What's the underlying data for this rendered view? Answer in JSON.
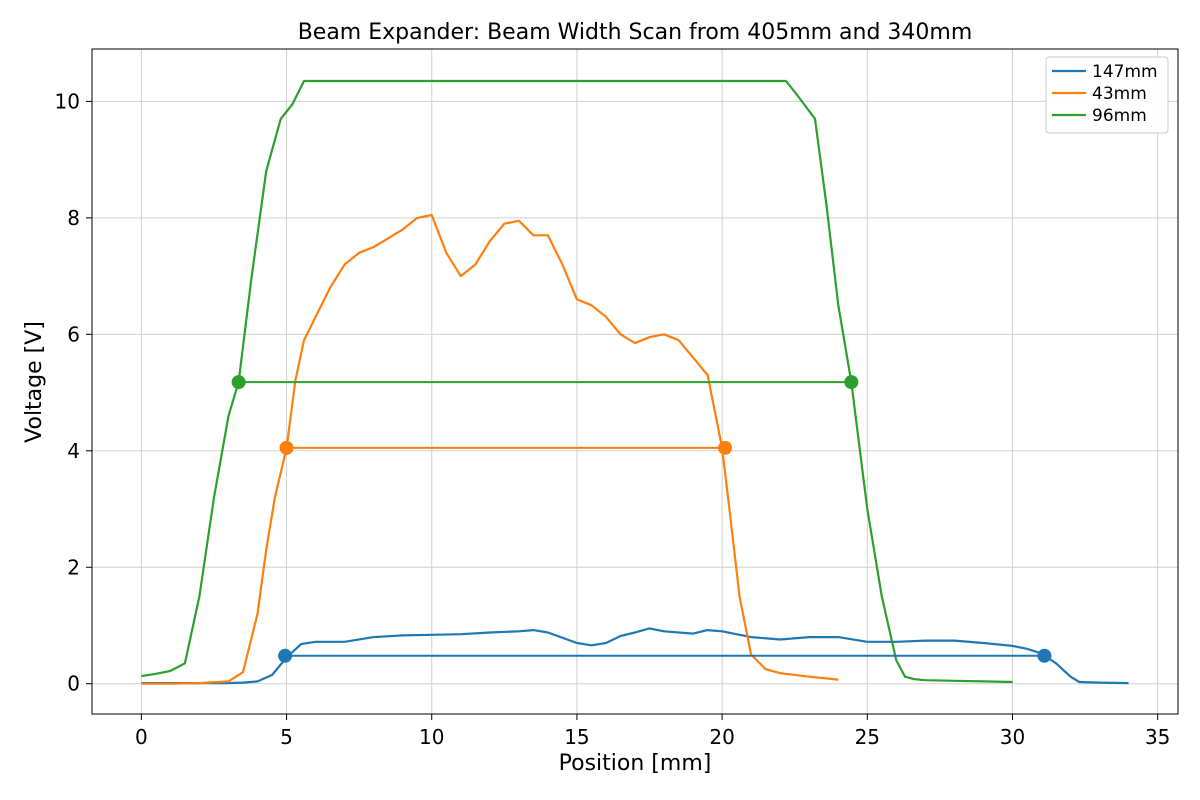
{
  "chart_data": {
    "type": "line",
    "title": "Beam Expander: Beam Width Scan from 405mm and 340mm",
    "xlabel": "Position [mm]",
    "ylabel": "Voltage [V]",
    "xlim": [
      -1.7,
      35.7
    ],
    "ylim": [
      -0.52,
      10.9
    ],
    "xticks": [
      0,
      5,
      10,
      15,
      20,
      25,
      30,
      35
    ],
    "yticks": [
      0,
      2,
      4,
      6,
      8,
      10
    ],
    "grid": true,
    "legend_position": "top-right",
    "series": [
      {
        "name": "147mm",
        "color": "#1f77b4",
        "x": [
          0,
          1,
          2,
          3,
          3.5,
          4,
          4.5,
          5,
          5.5,
          6,
          7,
          8,
          9,
          10,
          11,
          12,
          13,
          13.5,
          14,
          15,
          15.5,
          16,
          16.5,
          17,
          17.5,
          18,
          19,
          19.5,
          20,
          21,
          22,
          23,
          24,
          25,
          26,
          27,
          28,
          29,
          30,
          30.5,
          31,
          31.5,
          32,
          32.3,
          33,
          34
        ],
        "y": [
          0.01,
          0.01,
          0.01,
          0.01,
          0.02,
          0.04,
          0.15,
          0.45,
          0.68,
          0.72,
          0.72,
          0.8,
          0.83,
          0.84,
          0.85,
          0.88,
          0.9,
          0.92,
          0.88,
          0.7,
          0.66,
          0.7,
          0.82,
          0.88,
          0.95,
          0.9,
          0.86,
          0.92,
          0.9,
          0.8,
          0.76,
          0.8,
          0.8,
          0.72,
          0.72,
          0.74,
          0.74,
          0.7,
          0.65,
          0.6,
          0.52,
          0.35,
          0.12,
          0.03,
          0.02,
          0.01
        ]
      },
      {
        "name": "43mm",
        "color": "#ff7f0e",
        "x": [
          0,
          1,
          2,
          3,
          3.5,
          4,
          4.3,
          4.6,
          5,
          5.3,
          5.6,
          6,
          6.5,
          7,
          7.5,
          8,
          8.5,
          9,
          9.5,
          10,
          10.5,
          11,
          11.5,
          12,
          12.5,
          13,
          13.5,
          14,
          14.5,
          15,
          15.5,
          16,
          16.5,
          17,
          17.5,
          18,
          18.5,
          19,
          19.5,
          20,
          20.3,
          20.6,
          21,
          21.5,
          22,
          23,
          24
        ],
        "y": [
          0,
          0,
          0.01,
          0.04,
          0.2,
          1.2,
          2.3,
          3.2,
          4.05,
          5.2,
          5.9,
          6.3,
          6.8,
          7.2,
          7.4,
          7.5,
          7.65,
          7.8,
          8.0,
          8.05,
          7.4,
          7.0,
          7.2,
          7.6,
          7.9,
          7.95,
          7.7,
          7.7,
          7.2,
          6.6,
          6.5,
          6.3,
          6.0,
          5.85,
          5.95,
          6.0,
          5.9,
          5.6,
          5.3,
          4.05,
          2.8,
          1.5,
          0.5,
          0.25,
          0.18,
          0.12,
          0.07
        ]
      },
      {
        "name": "96mm",
        "color": "#2ca02c",
        "x": [
          0,
          0.5,
          1,
          1.5,
          2,
          2.5,
          3,
          3.35,
          3.8,
          4.3,
          4.8,
          5.2,
          5.6,
          6,
          10,
          15,
          20,
          22.2,
          22.6,
          23.2,
          23.6,
          24,
          24.45,
          25,
          25.5,
          26,
          26.3,
          26.6,
          27,
          28,
          29,
          30
        ],
        "y": [
          0.13,
          0.17,
          0.22,
          0.35,
          1.5,
          3.2,
          4.6,
          5.18,
          7.0,
          8.8,
          9.7,
          9.95,
          10.35,
          10.35,
          10.35,
          10.35,
          10.35,
          10.35,
          10.1,
          9.7,
          8.2,
          6.5,
          5.18,
          3.0,
          1.5,
          0.4,
          0.12,
          0.08,
          0.06,
          0.05,
          0.04,
          0.03
        ]
      }
    ],
    "width_markers": [
      {
        "series": "147mm",
        "color": "#1f77b4",
        "x1": 4.95,
        "x2": 31.1,
        "y": 0.48
      },
      {
        "series": "43mm",
        "color": "#ff7f0e",
        "x1": 5.0,
        "x2": 20.1,
        "y": 4.05
      },
      {
        "series": "96mm",
        "color": "#2ca02c",
        "x1": 3.35,
        "x2": 24.45,
        "y": 5.18
      }
    ]
  }
}
